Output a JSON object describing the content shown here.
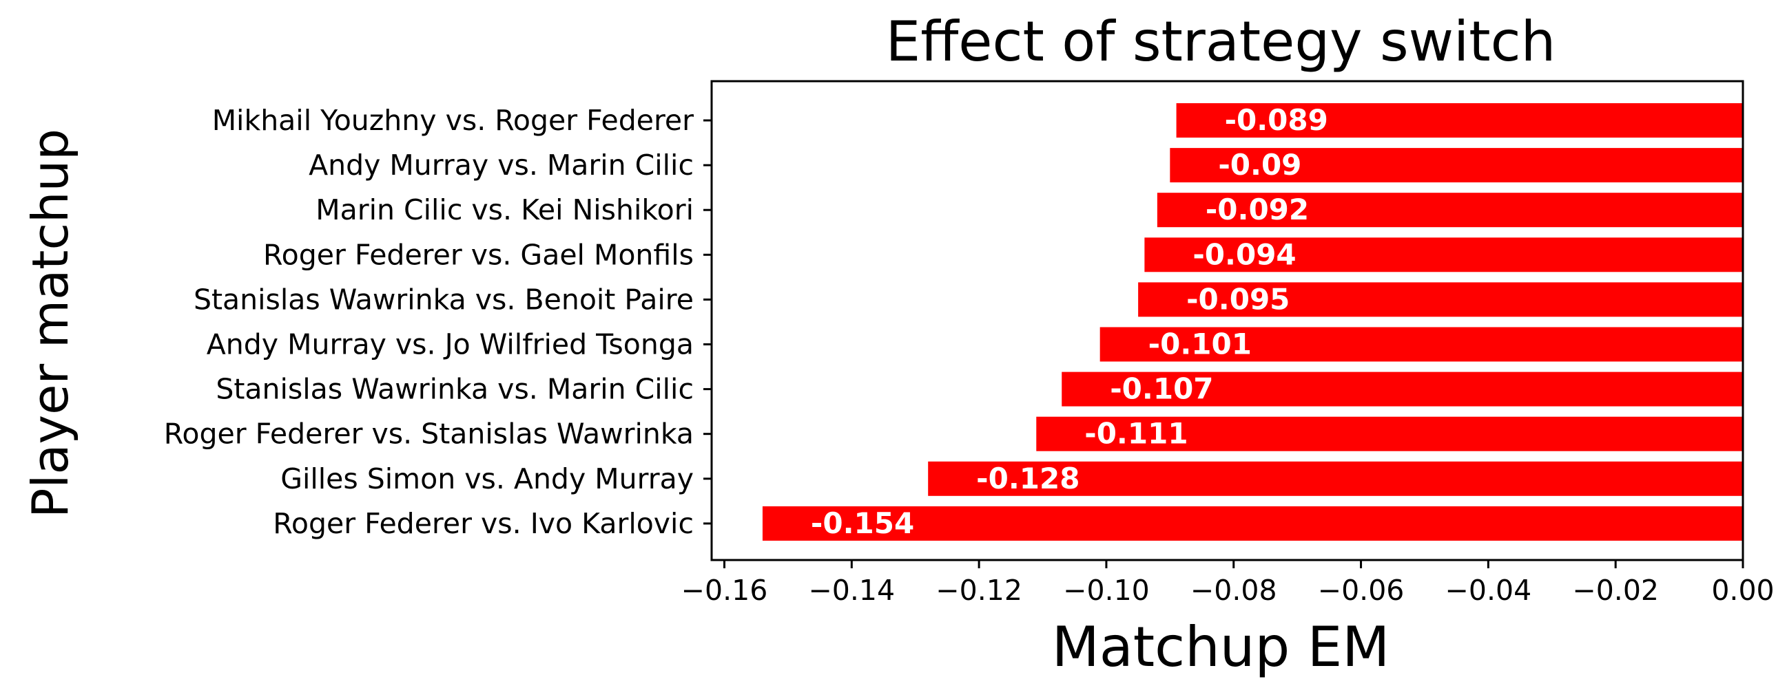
{
  "chart_data": {
    "type": "bar",
    "orientation": "horizontal",
    "title": "Effect of strategy switch",
    "xlabel": "Matchup EM",
    "ylabel": "Player matchup",
    "xlim": [
      -0.162,
      0.0
    ],
    "xticks": [
      -0.16,
      -0.14,
      -0.12,
      -0.1,
      -0.08,
      -0.06,
      -0.04,
      -0.02,
      0.0
    ],
    "xtick_labels": [
      "−0.16",
      "−0.14",
      "−0.12",
      "−0.10",
      "−0.08",
      "−0.06",
      "−0.04",
      "−0.02",
      "0.00"
    ],
    "grid": false,
    "legend": "none",
    "bar_color": "#ff0000",
    "label_color": "#ffffff",
    "categories": [
      "Mikhail Youzhny vs. Roger Federer",
      "Andy Murray vs. Marin Cilic",
      "Marin Cilic vs. Kei Nishikori",
      "Roger Federer vs. Gael Monfils",
      "Stanislas Wawrinka vs. Benoit Paire",
      "Andy Murray vs. Jo Wilfried Tsonga",
      "Stanislas Wawrinka vs. Marin Cilic",
      "Roger Federer vs. Stanislas Wawrinka",
      "Gilles Simon vs. Andy Murray",
      "Roger Federer vs. Ivo Karlovic"
    ],
    "values": [
      -0.089,
      -0.09,
      -0.092,
      -0.094,
      -0.095,
      -0.101,
      -0.107,
      -0.111,
      -0.128,
      -0.154
    ],
    "data_labels": [
      "-0.089",
      "-0.09",
      "-0.092",
      "-0.094",
      "-0.095",
      "-0.101",
      "-0.107",
      "-0.111",
      "-0.128",
      "-0.154"
    ]
  }
}
